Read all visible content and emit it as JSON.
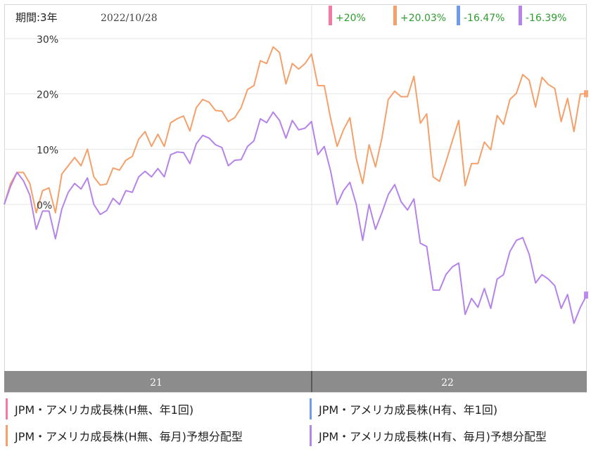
{
  "header": {
    "period_label": "期間:3年",
    "date": "2022/10/28"
  },
  "chart_data": {
    "type": "line",
    "x_ticks": [
      "21",
      "22"
    ],
    "y_ticks": [
      "30%",
      "20%",
      "10%",
      "0%"
    ],
    "ylim": [
      -30,
      30
    ],
    "series": [
      {
        "name": "JPM・アメリカ成長株(H無、年1回)",
        "color": "#f07aa0",
        "return_label": "+20%",
        "values": []
      },
      {
        "name": "JPM・アメリカ成長株(H有、年1回)",
        "color": "#6f9be8",
        "return_label": "-16.47%",
        "values": []
      },
      {
        "name": "JPM・アメリカ成長株(H無、毎月)予想分配型",
        "color": "#f5a06a",
        "return_label": "+20.03%",
        "values": [
          0,
          3.8,
          5.8,
          5.8,
          3.8,
          -1.5,
          2.5,
          3,
          -1.5,
          5.5,
          7,
          8.5,
          7,
          10,
          5,
          3.5,
          3.7,
          6.6,
          6.2,
          8,
          8.7,
          11.8,
          13.2,
          10.5,
          12.7,
          10.5,
          14.8,
          15.5,
          16,
          13.3,
          17.5,
          19,
          18.5,
          17,
          16.9,
          15,
          15.7,
          17.5,
          20.8,
          21.5,
          26,
          25.5,
          28.5,
          27.5,
          21.8,
          25.5,
          24.5,
          25.5,
          27.2,
          21.5,
          21.5,
          15.5,
          10.5,
          13.5,
          15.7,
          8.3,
          3.8,
          10.8,
          6.8,
          12,
          19,
          20.5,
          19.5,
          19.5,
          23.2,
          14.7,
          16.4,
          5,
          4.2,
          7.7,
          11.5,
          15.2,
          3.4,
          7.4,
          7.4,
          11.3,
          9.9,
          16.1,
          14.5,
          19,
          20.1,
          23.5,
          22.5,
          17.6,
          23,
          21.7,
          21,
          15,
          19.2,
          13.2,
          20,
          20.03
        ]
      },
      {
        "name": "JPM・アメリカ成長株(H有、毎月)予想分配型",
        "color": "#b583ea",
        "return_label": "-16.39%",
        "values": [
          0,
          3.3,
          5.8,
          4.3,
          1.7,
          -4.5,
          -1.2,
          -1.2,
          -6.2,
          -0.8,
          2.2,
          3.8,
          2.8,
          4.8,
          0,
          -1.8,
          -1.1,
          1.1,
          0,
          2.5,
          2.2,
          5,
          6,
          5,
          6.5,
          5,
          9,
          9.5,
          9.4,
          7.4,
          11,
          12.5,
          12,
          10.8,
          10.3,
          7,
          8,
          8.1,
          10.5,
          11.5,
          15.5,
          14.8,
          16.7,
          15.2,
          12,
          15.2,
          13.5,
          13.8,
          15,
          9,
          10.5,
          6,
          0,
          2.5,
          4,
          0,
          -6.5,
          0,
          -4.5,
          -1.5,
          1.8,
          3.6,
          0.5,
          -1,
          1,
          -7,
          -7.6,
          -15.5,
          -15.5,
          -12.7,
          -11.3,
          -10.6,
          -19.9,
          -17,
          -18.6,
          -15.2,
          -18.8,
          -13.5,
          -12.7,
          -8.5,
          -6.5,
          -6,
          -9,
          -14.2,
          -12.7,
          -13.5,
          -14.7,
          -18.8,
          -16.3,
          -21.5,
          -18.6,
          -16.39
        ]
      }
    ]
  }
}
